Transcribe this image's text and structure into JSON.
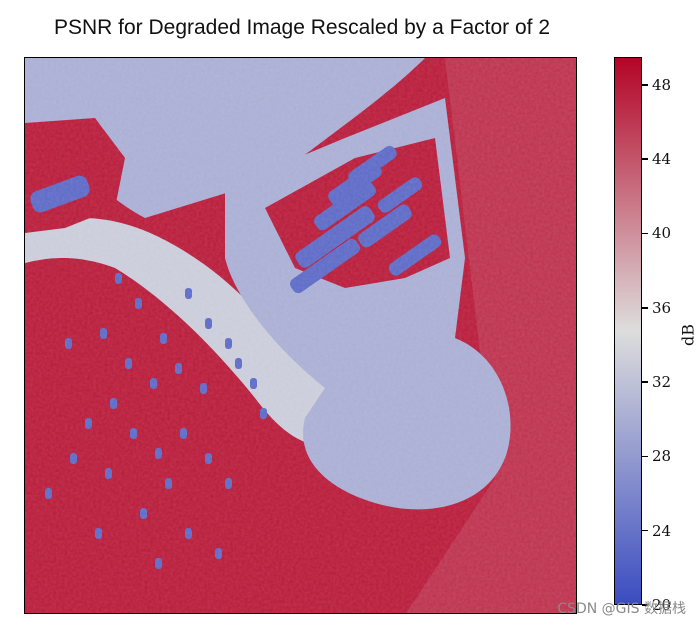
{
  "chart_data": {
    "type": "heatmap",
    "title": "PSNR for Degraded Image Rescaled by a Factor of 2",
    "colorbar": {
      "label": "dB",
      "range": [
        20,
        49.5
      ],
      "ticks": [
        20,
        24,
        28,
        32,
        36,
        40,
        44,
        48
      ],
      "colormap": "coolwarm"
    },
    "scene": {
      "description_values": {
        "open_water": 48,
        "land_and_buildings": 30,
        "boats": 23
      }
    },
    "grid": false
  },
  "watermark": "CSDN @GIS 数据栈",
  "colors": {
    "low": "#3b4cc0",
    "mid": "#dddddd",
    "high": "#b40426"
  }
}
